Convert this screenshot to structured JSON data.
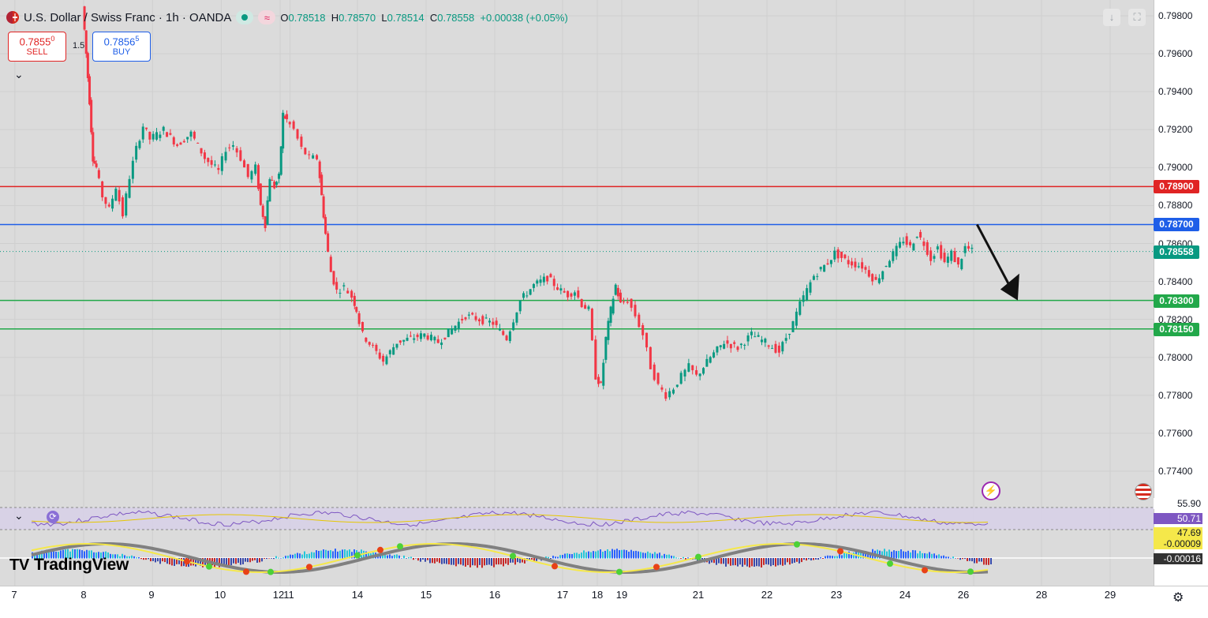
{
  "header": {
    "symbol_title": "U.S. Dollar / Swiss Franc · 1h · OANDA",
    "ohlc": {
      "o_label": "O",
      "o_value": "0.78518",
      "h_label": "H",
      "h_value": "0.78570",
      "l_label": "L",
      "l_value": "0.78514",
      "c_label": "C",
      "c_value": "0.78558",
      "change": "+0.00038 (+0.05%)"
    },
    "flag_icon": "us-swiss-flag-icon",
    "status_icons": [
      "market-open-dot-icon",
      "delayed-data-icon"
    ]
  },
  "trade": {
    "sell_price": "0.7855",
    "sell_sup": "0",
    "sell_label": "SELL",
    "spread": "1.5",
    "buy_price": "0.7856",
    "buy_sup": "5",
    "buy_label": "BUY"
  },
  "toolbar": {
    "download_icon": "arrow-down-icon",
    "fullscreen_icon": "fullscreen-icon",
    "collapse_icon": "chevron-down-icon"
  },
  "chart_data": {
    "type": "candlestick",
    "symbol": "USD/CHF",
    "timeframe": "1h",
    "y_ticks": [
      "0.79800",
      "0.79600",
      "0.79400",
      "0.79200",
      "0.79000",
      "0.78800",
      "0.78600",
      "0.78400",
      "0.78200",
      "0.78000",
      "0.77800",
      "0.77600",
      "0.77400"
    ],
    "ylim": [
      0.7725,
      0.7985
    ],
    "x_ticks": [
      "7",
      "8",
      "9",
      "10",
      "11",
      "12",
      "14",
      "15",
      "16",
      "17",
      "18",
      "19",
      "21",
      "22",
      "23",
      "24",
      "26",
      "28",
      "29"
    ],
    "price_path": [
      [
        8.0,
        0.7985
      ],
      [
        8.05,
        0.796
      ],
      [
        8.1,
        0.7935
      ],
      [
        8.15,
        0.7905
      ],
      [
        8.2,
        0.79
      ],
      [
        8.3,
        0.7885
      ],
      [
        8.4,
        0.7878
      ],
      [
        8.5,
        0.789
      ],
      [
        8.6,
        0.7875
      ],
      [
        8.7,
        0.7895
      ],
      [
        8.8,
        0.791
      ],
      [
        8.9,
        0.7922
      ],
      [
        9.0,
        0.7915
      ],
      [
        9.2,
        0.792
      ],
      [
        9.4,
        0.7912
      ],
      [
        9.6,
        0.7918
      ],
      [
        9.8,
        0.7905
      ],
      [
        10.0,
        0.7898
      ],
      [
        10.2,
        0.791
      ],
      [
        10.4,
        0.7912
      ],
      [
        10.6,
        0.7905
      ],
      [
        10.8,
        0.7895
      ],
      [
        11.0,
        0.79
      ],
      [
        11.2,
        0.788
      ],
      [
        11.4,
        0.787
      ],
      [
        11.6,
        0.7895
      ],
      [
        11.8,
        0.789
      ],
      [
        12.0,
        0.7895
      ],
      [
        12.1,
        0.7928
      ],
      [
        12.2,
        0.7925
      ],
      [
        12.4,
        0.792
      ],
      [
        12.6,
        0.791
      ],
      [
        12.8,
        0.7905
      ],
      [
        13.0,
        0.7905
      ],
      [
        13.1,
        0.7885
      ],
      [
        13.2,
        0.7865
      ],
      [
        13.35,
        0.7845
      ],
      [
        13.5,
        0.7835
      ],
      [
        13.7,
        0.7837
      ],
      [
        13.9,
        0.7832
      ],
      [
        14.0,
        0.7825
      ],
      [
        14.1,
        0.7812
      ],
      [
        14.25,
        0.7805
      ],
      [
        14.4,
        0.7798
      ],
      [
        14.6,
        0.7808
      ],
      [
        14.8,
        0.781
      ],
      [
        15.0,
        0.7812
      ],
      [
        15.2,
        0.7808
      ],
      [
        15.4,
        0.7815
      ],
      [
        15.6,
        0.7822
      ],
      [
        15.8,
        0.782
      ],
      [
        16.0,
        0.7818
      ],
      [
        16.2,
        0.781
      ],
      [
        16.4,
        0.783
      ],
      [
        16.6,
        0.7838
      ],
      [
        16.8,
        0.7842
      ],
      [
        17.0,
        0.7835
      ],
      [
        17.2,
        0.7833
      ],
      [
        17.4,
        0.7835
      ],
      [
        17.6,
        0.7828
      ],
      [
        17.8,
        0.7825
      ],
      [
        18.0,
        0.779
      ],
      [
        18.2,
        0.7785
      ],
      [
        18.4,
        0.781
      ],
      [
        18.6,
        0.7825
      ],
      [
        18.8,
        0.7838
      ],
      [
        19.0,
        0.7828
      ],
      [
        19.2,
        0.783
      ],
      [
        19.4,
        0.7822
      ],
      [
        19.6,
        0.7812
      ],
      [
        19.8,
        0.7795
      ],
      [
        20.0,
        0.7785
      ],
      [
        20.2,
        0.778
      ],
      [
        20.4,
        0.7784
      ],
      [
        20.6,
        0.779
      ],
      [
        20.8,
        0.7795
      ],
      [
        21.0,
        0.779
      ],
      [
        21.2,
        0.78
      ],
      [
        21.4,
        0.7808
      ],
      [
        21.6,
        0.7805
      ],
      [
        21.8,
        0.7812
      ],
      [
        22.0,
        0.7808
      ],
      [
        22.2,
        0.7803
      ],
      [
        22.4,
        0.7818
      ],
      [
        22.5,
        0.7828
      ],
      [
        22.7,
        0.7843
      ],
      [
        22.9,
        0.785
      ],
      [
        23.0,
        0.7855
      ],
      [
        23.2,
        0.785
      ],
      [
        23.4,
        0.7848
      ],
      [
        23.6,
        0.784
      ],
      [
        23.8,
        0.7852
      ],
      [
        24.0,
        0.7862
      ],
      [
        24.2,
        0.7858
      ],
      [
        24.4,
        0.7865
      ],
      [
        24.6,
        0.786
      ],
      [
        24.8,
        0.7852
      ],
      [
        25.0,
        0.7858
      ],
      [
        25.2,
        0.785
      ],
      [
        25.4,
        0.7855
      ],
      [
        25.6,
        0.7848
      ],
      [
        25.8,
        0.7858
      ],
      [
        26.0,
        0.7856
      ]
    ],
    "levels": [
      {
        "price": "0.78900",
        "color": "#e02424"
      },
      {
        "price": "0.78700",
        "color": "#1e5ee8"
      },
      {
        "price": "0.78558",
        "color": "#089981"
      },
      {
        "price": "0.78300",
        "color": "#22a84a"
      },
      {
        "price": "0.78150",
        "color": "#22a84a"
      }
    ],
    "arrow": {
      "from": [
        "26.1",
        "0.7870"
      ],
      "to": [
        "27.3",
        "0.7830"
      ],
      "color": "#111111"
    },
    "rsi": {
      "value": "50.71",
      "ma_value": "47.69",
      "upper_label": "55.90"
    },
    "oscillator": {
      "value1": "-0.00009",
      "value2": "-0.00016"
    }
  },
  "icons": {
    "symbol_flag": "us-swiss-flag-icon",
    "indicator_collapse": "chevron-down-icon",
    "indicator_settings": "refresh-icon",
    "lightning": "lightning-icon",
    "time_settings": "gear-icon",
    "calendar_flag": "us-flag-icon"
  },
  "branding": {
    "logo_text": "TradingView"
  }
}
